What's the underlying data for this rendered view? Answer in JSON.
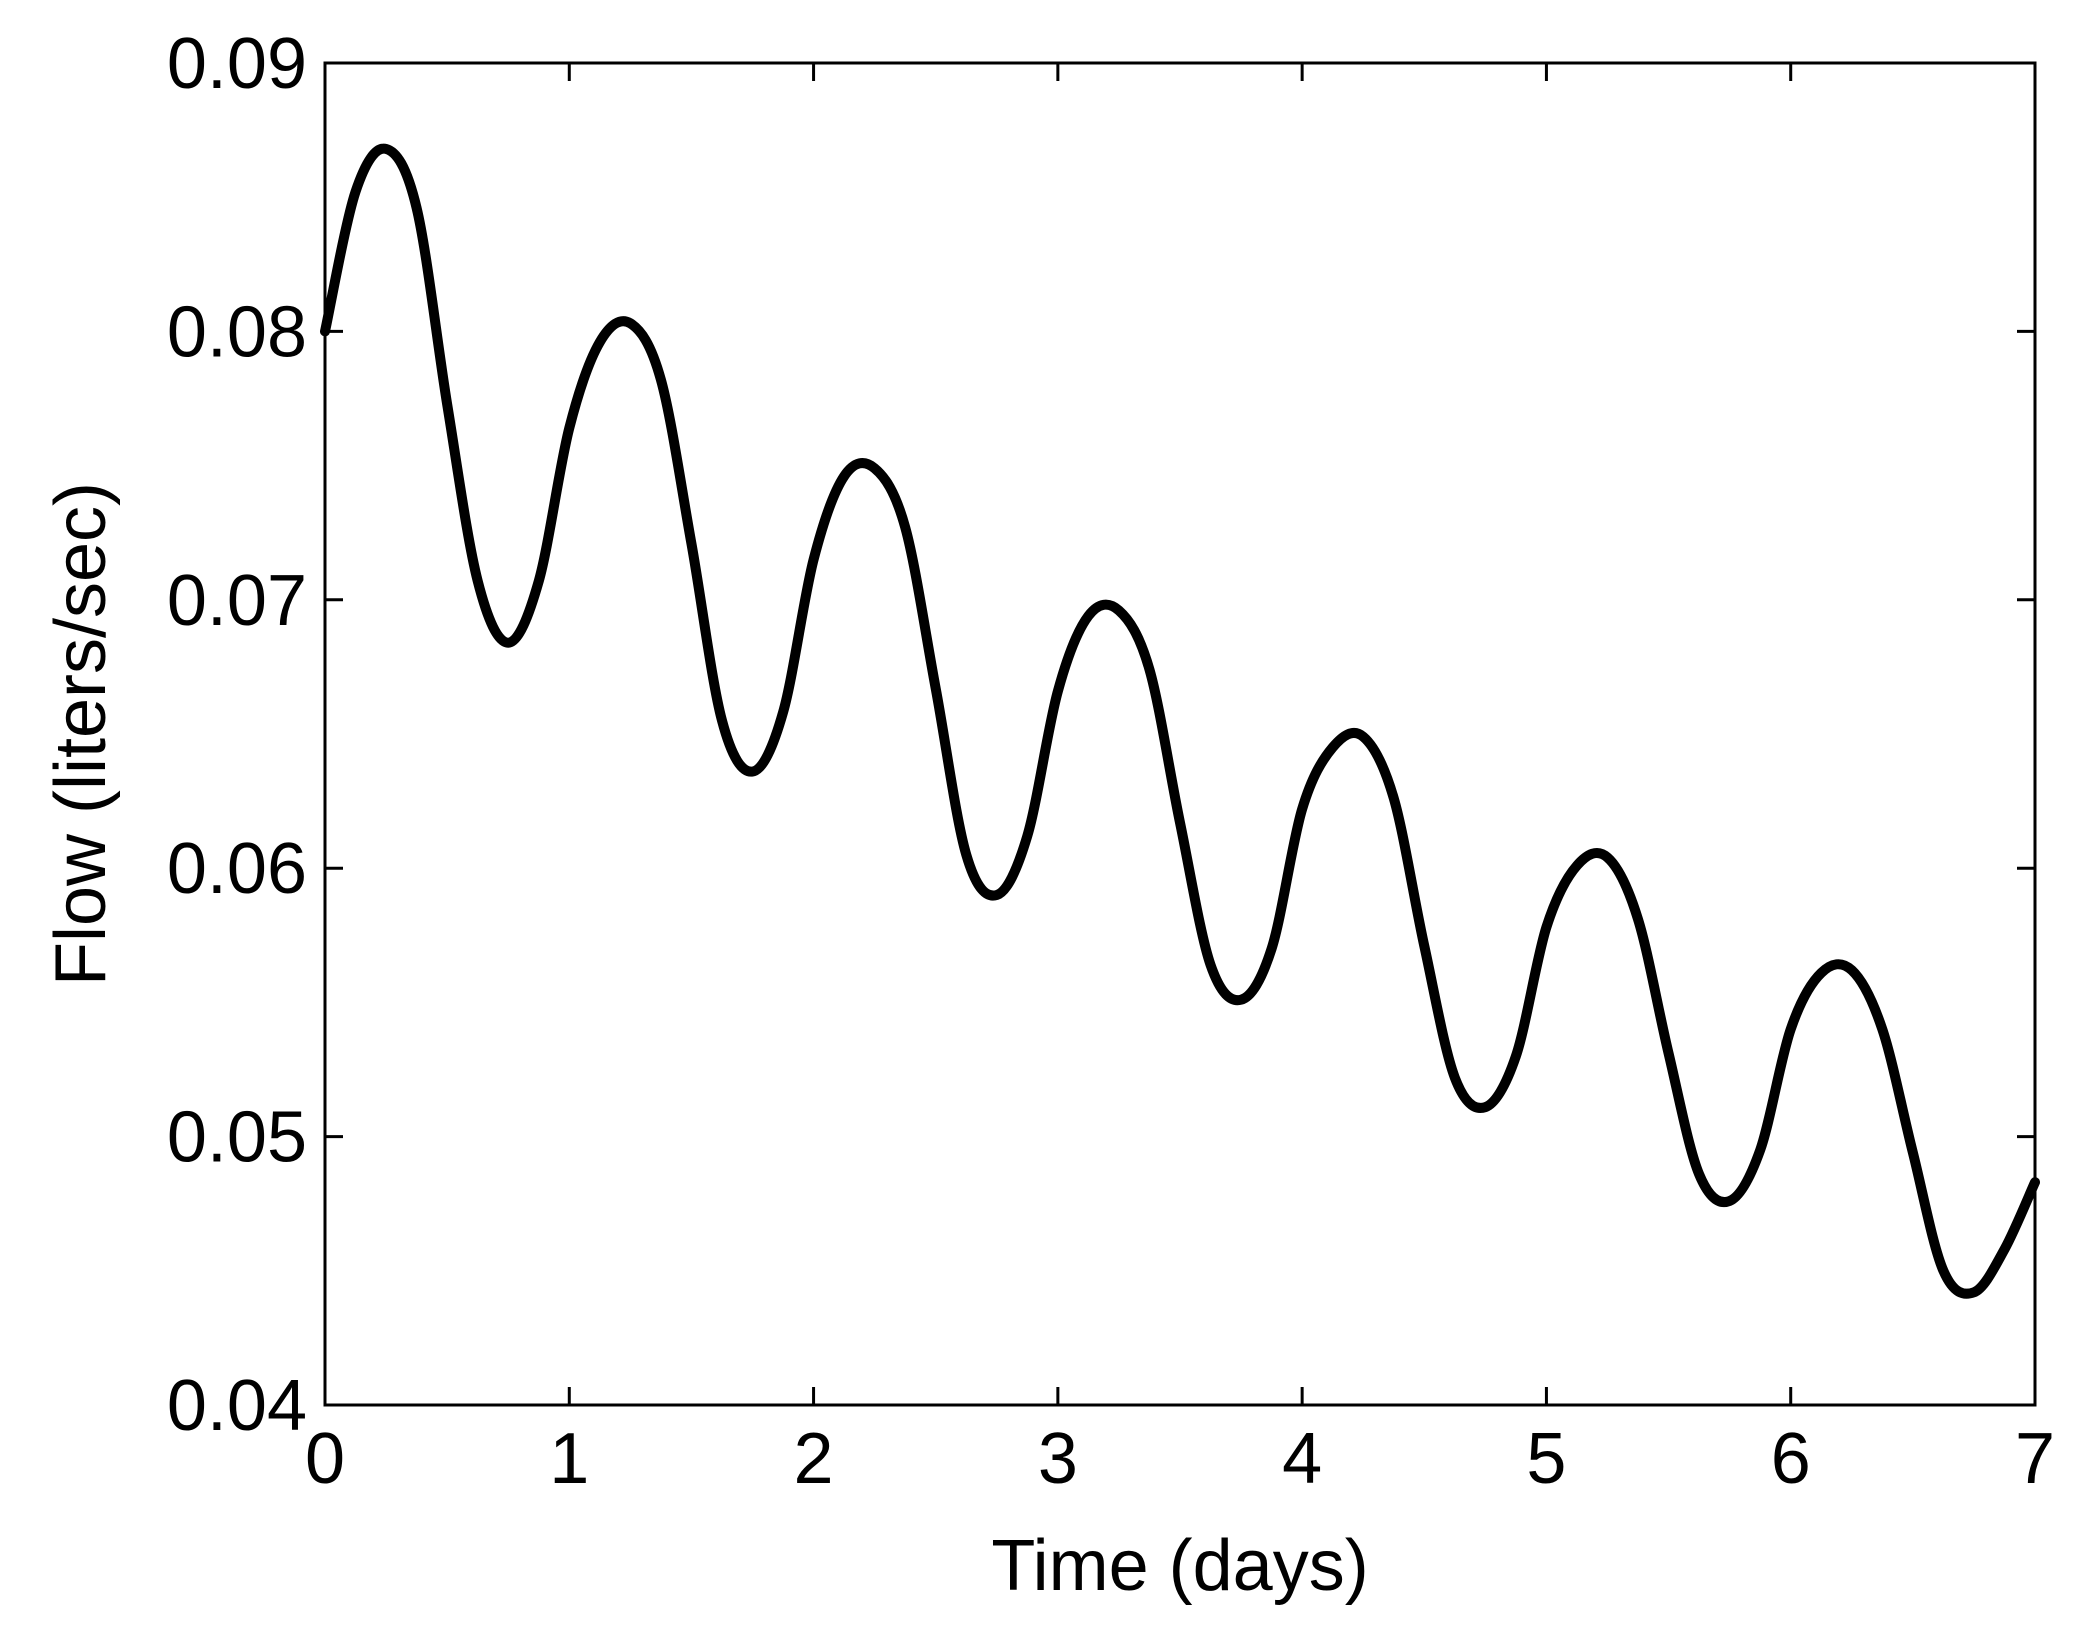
{
  "chart_data": {
    "type": "line",
    "title": "",
    "xlabel": "Time (days)",
    "ylabel": "Flow (liters/sec)",
    "xlim": [
      0,
      7
    ],
    "ylim": [
      0.04,
      0.09
    ],
    "x_ticks": [
      0,
      1,
      2,
      3,
      4,
      5,
      6,
      7
    ],
    "x_tick_labels": [
      "0",
      "1",
      "2",
      "3",
      "4",
      "5",
      "6",
      "7"
    ],
    "y_ticks": [
      0.04,
      0.05,
      0.06,
      0.07,
      0.08,
      0.09
    ],
    "y_tick_labels": [
      "0.04",
      "0.05",
      "0.06",
      "0.07",
      "0.08",
      "0.09"
    ],
    "grid": false,
    "legend": "none",
    "line_color": "#000000",
    "series": [
      {
        "x": [
          0,
          0.125,
          0.25,
          0.375,
          0.5,
          0.625,
          0.75,
          0.875,
          1.0,
          1.125,
          1.25,
          1.375,
          1.5,
          1.625,
          1.75,
          1.875,
          2.0,
          2.125,
          2.25,
          2.375,
          2.5,
          2.625,
          2.75,
          2.875,
          3.0,
          3.125,
          3.25,
          3.375,
          3.5,
          3.625,
          3.75,
          3.875,
          4.0,
          4.125,
          4.25,
          4.375,
          4.5,
          4.625,
          4.75,
          4.875,
          5.0,
          5.125,
          5.25,
          5.375,
          5.5,
          5.625,
          5.75,
          5.875,
          6.0,
          6.125,
          6.25,
          6.375,
          6.5,
          6.625,
          6.75,
          6.875,
          7.0
        ],
        "y": [
          0.08,
          0.0852,
          0.0868,
          0.0846,
          0.0773,
          0.0707,
          0.0684,
          0.0707,
          0.0764,
          0.0796,
          0.0803,
          0.0782,
          0.0721,
          0.0655,
          0.0636,
          0.0658,
          0.0715,
          0.0746,
          0.0749,
          0.0727,
          0.0667,
          0.0605,
          0.059,
          0.0612,
          0.0666,
          0.0694,
          0.0696,
          0.0674,
          0.0617,
          0.0564,
          0.0551,
          0.057,
          0.0622,
          0.0645,
          0.0649,
          0.0626,
          0.0571,
          0.0522,
          0.0511,
          0.053,
          0.0578,
          0.0601,
          0.0604,
          0.0581,
          0.0531,
          0.0486,
          0.0476,
          0.0495,
          0.054,
          0.0561,
          0.0562,
          0.054,
          0.0494,
          0.045,
          0.0442,
          0.0458,
          0.0483
        ]
      }
    ]
  }
}
